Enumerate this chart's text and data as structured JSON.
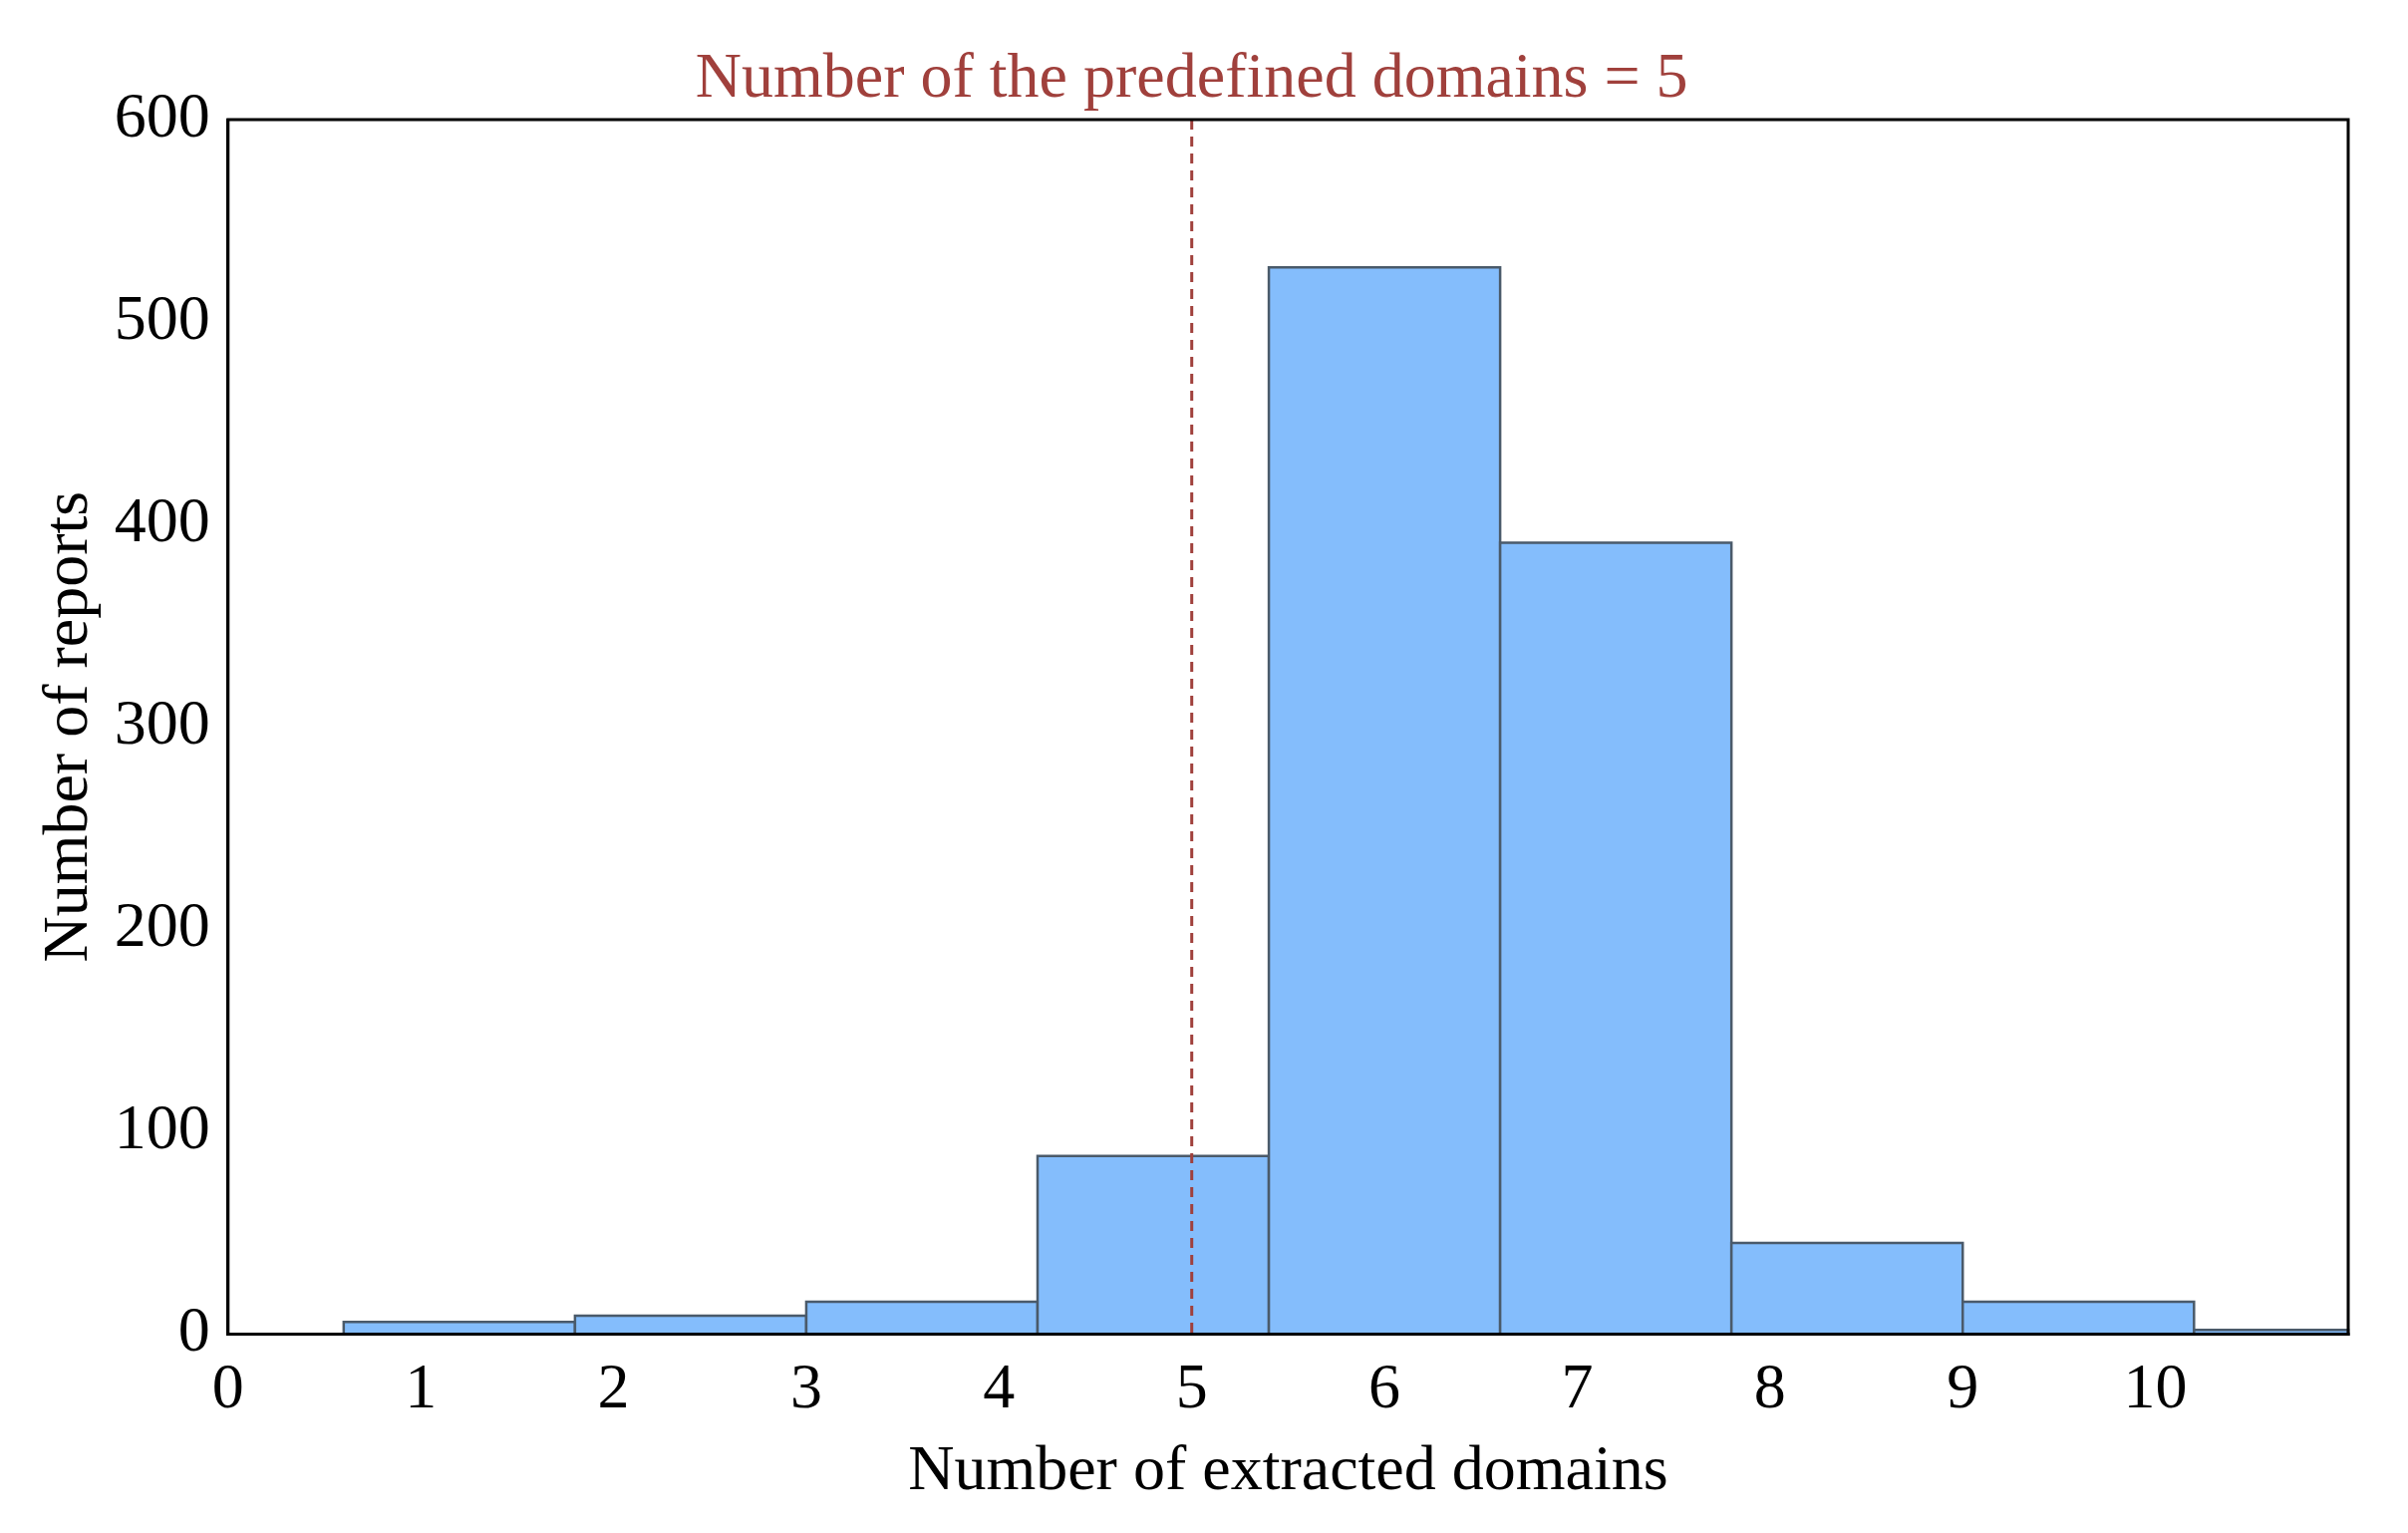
{
  "chart_data": {
    "type": "histogram",
    "xlabel": "Number of extracted domains",
    "ylabel": "Number of reports",
    "bins": [
      0.6,
      1.8,
      3.0,
      4.2,
      5.4,
      6.6,
      7.8,
      9.0,
      10.2,
      11.0
    ],
    "values": [
      6,
      9,
      16,
      88,
      527,
      391,
      45,
      16,
      2
    ],
    "color": "#84bdfc",
    "xlim": [
      0,
      11
    ],
    "xticks": [
      0,
      1,
      2,
      3,
      4,
      5,
      6,
      7,
      8,
      9,
      10
    ],
    "ylim": [
      0,
      600
    ],
    "yticks": [
      0,
      100,
      200,
      300,
      400,
      500,
      600
    ],
    "grid": false,
    "legend": false,
    "ref_lines": [
      {
        "axis": "x",
        "value": 5,
        "label": "Number of the predefined domains = 5",
        "color": "#a0403c",
        "line_style": "dashed"
      }
    ]
  }
}
